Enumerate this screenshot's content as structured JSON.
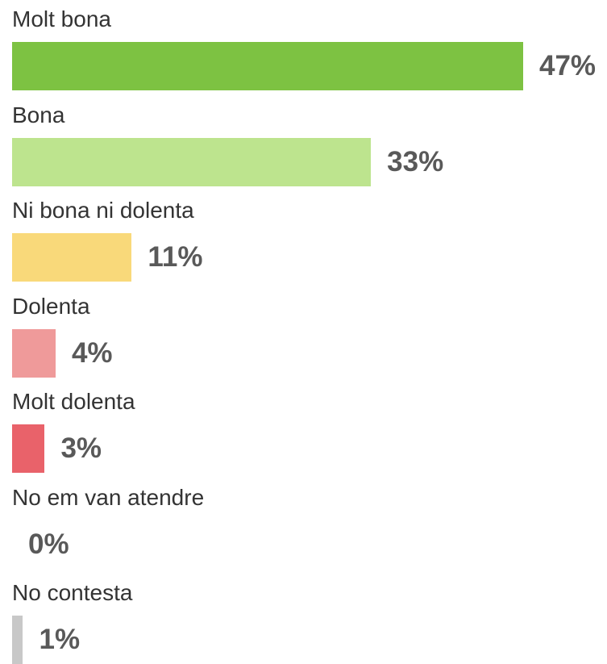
{
  "chart_data": {
    "type": "bar",
    "orientation": "horizontal",
    "categories": [
      "Molt bona",
      "Bona",
      "Ni bona ni dolenta",
      "Dolenta",
      "Molt dolenta",
      "No em van atendre",
      "No contesta"
    ],
    "values": [
      47,
      33,
      11,
      4,
      3,
      0,
      1
    ],
    "value_labels": [
      "47%",
      "33%",
      "11%",
      "4%",
      "3%",
      "0%",
      "1%"
    ],
    "colors": [
      "#7dc242",
      "#bde48e",
      "#f9d97a",
      "#ef9a9a",
      "#e9626a",
      "#ffffff",
      "#c8c8c8"
    ],
    "title": "",
    "xlabel": "",
    "ylabel": "",
    "xlim": [
      0,
      47
    ],
    "grid": false,
    "legend": "none"
  }
}
